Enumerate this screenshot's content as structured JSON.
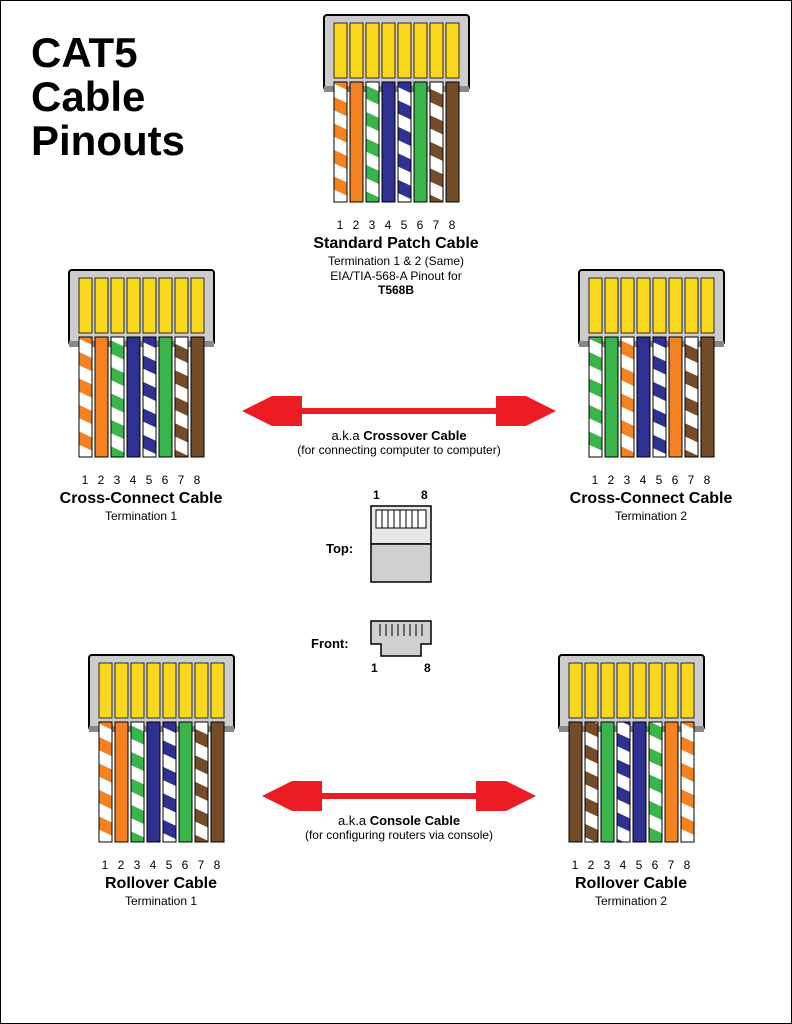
{
  "title_l1": "CAT5",
  "title_l2": "Cable",
  "title_l3": "Pinouts",
  "colors": {
    "orange": "#f58220",
    "green": "#39b54a",
    "blue": "#2e3192",
    "brown": "#754c29",
    "white": "#ffffff",
    "yellow_contact": "#f9d71c",
    "connector_body": "#cccccc",
    "connector_edge": "#888888",
    "arrow_red": "#ec1c24",
    "black": "#000000"
  },
  "pin_labels": [
    "1",
    "2",
    "3",
    "4",
    "5",
    "6",
    "7",
    "8"
  ],
  "connectors": {
    "standard": {
      "title": "Standard Patch Cable",
      "sub1": "Termination 1 & 2 (Same)",
      "sub2_pre": "EIA/TIA-568-A Pinout for ",
      "sub2_bold": "T568B",
      "wires": [
        {
          "type": "stripe",
          "color": "#f58220"
        },
        {
          "type": "solid",
          "color": "#f58220"
        },
        {
          "type": "stripe",
          "color": "#39b54a"
        },
        {
          "type": "solid",
          "color": "#2e3192"
        },
        {
          "type": "stripe",
          "color": "#2e3192"
        },
        {
          "type": "solid",
          "color": "#39b54a"
        },
        {
          "type": "stripe",
          "color": "#754c29"
        },
        {
          "type": "solid",
          "color": "#754c29"
        }
      ]
    },
    "cross1": {
      "title": "Cross-Connect Cable",
      "sub1": "Termination 1",
      "wires": [
        {
          "type": "stripe",
          "color": "#f58220"
        },
        {
          "type": "solid",
          "color": "#f58220"
        },
        {
          "type": "stripe",
          "color": "#39b54a"
        },
        {
          "type": "solid",
          "color": "#2e3192"
        },
        {
          "type": "stripe",
          "color": "#2e3192"
        },
        {
          "type": "solid",
          "color": "#39b54a"
        },
        {
          "type": "stripe",
          "color": "#754c29"
        },
        {
          "type": "solid",
          "color": "#754c29"
        }
      ]
    },
    "cross2": {
      "title": "Cross-Connect Cable",
      "sub1": "Termination 2",
      "wires": [
        {
          "type": "stripe",
          "color": "#39b54a"
        },
        {
          "type": "solid",
          "color": "#39b54a"
        },
        {
          "type": "stripe",
          "color": "#f58220"
        },
        {
          "type": "solid",
          "color": "#2e3192"
        },
        {
          "type": "stripe",
          "color": "#2e3192"
        },
        {
          "type": "solid",
          "color": "#f58220"
        },
        {
          "type": "stripe",
          "color": "#754c29"
        },
        {
          "type": "solid",
          "color": "#754c29"
        }
      ]
    },
    "roll1": {
      "title": "Rollover Cable",
      "sub1": "Termination 1",
      "wires": [
        {
          "type": "stripe",
          "color": "#f58220"
        },
        {
          "type": "solid",
          "color": "#f58220"
        },
        {
          "type": "stripe",
          "color": "#39b54a"
        },
        {
          "type": "solid",
          "color": "#2e3192"
        },
        {
          "type": "stripe",
          "color": "#2e3192"
        },
        {
          "type": "solid",
          "color": "#39b54a"
        },
        {
          "type": "stripe",
          "color": "#754c29"
        },
        {
          "type": "solid",
          "color": "#754c29"
        }
      ]
    },
    "roll2": {
      "title": "Rollover Cable",
      "sub1": "Termination 2",
      "wires": [
        {
          "type": "solid",
          "color": "#754c29"
        },
        {
          "type": "stripe",
          "color": "#754c29"
        },
        {
          "type": "solid",
          "color": "#39b54a"
        },
        {
          "type": "stripe",
          "color": "#2e3192"
        },
        {
          "type": "solid",
          "color": "#2e3192"
        },
        {
          "type": "stripe",
          "color": "#39b54a"
        },
        {
          "type": "solid",
          "color": "#f58220"
        },
        {
          "type": "stripe",
          "color": "#f58220"
        }
      ]
    }
  },
  "arrows": {
    "crossover": {
      "line1_pre": "a.k.a ",
      "line1_bold": "Crossover Cable",
      "line2": "(for connecting computer to computer)"
    },
    "console": {
      "line1_pre": "a.k.a ",
      "line1_bold": "Console Cable",
      "line2": "(for configuring routers via console)"
    }
  },
  "orientation": {
    "top_label": "Top:",
    "front_label": "Front:",
    "num1": "1",
    "num8": "8"
  },
  "layout": {
    "connector_w": 150,
    "connector_h": 200,
    "wire_w": 13,
    "wire_gap": 3,
    "contact_h": 55,
    "body_h": 35
  }
}
